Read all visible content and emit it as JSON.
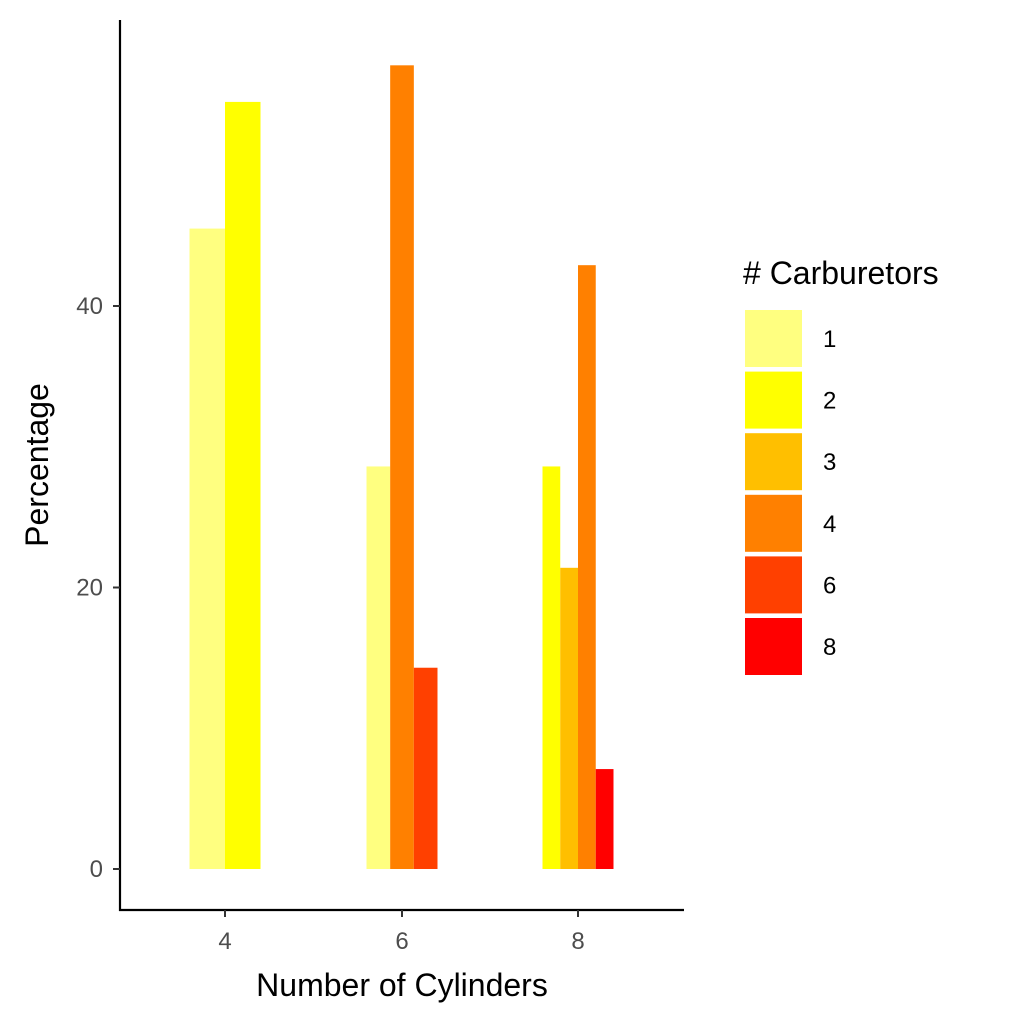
{
  "chart_data": {
    "type": "bar",
    "xlabel": "Number of Cylinders",
    "ylabel": "Percentage",
    "categories": [
      "4",
      "6",
      "8"
    ],
    "ylim": [
      0,
      57.1
    ],
    "yticks": [
      0,
      20,
      40
    ],
    "grid": false,
    "legend": {
      "title": "# Carburetors",
      "position": "right",
      "items": [
        {
          "label": "1",
          "color": "#FFFF80"
        },
        {
          "label": "2",
          "color": "#FFFF00"
        },
        {
          "label": "3",
          "color": "#FFBF00"
        },
        {
          "label": "4",
          "color": "#FF8000"
        },
        {
          "label": "6",
          "color": "#FF4000"
        },
        {
          "label": "8",
          "color": "#FF0000"
        }
      ]
    },
    "groups": [
      {
        "category": "4",
        "bars": [
          {
            "carb": "1",
            "value": 45.5
          },
          {
            "carb": "2",
            "value": 54.5
          }
        ]
      },
      {
        "category": "6",
        "bars": [
          {
            "carb": "1",
            "value": 28.6
          },
          {
            "carb": "4",
            "value": 57.1
          },
          {
            "carb": "6",
            "value": 14.3
          }
        ]
      },
      {
        "category": "8",
        "bars": [
          {
            "carb": "2",
            "value": 28.6
          },
          {
            "carb": "3",
            "value": 21.4
          },
          {
            "carb": "4",
            "value": 42.9
          },
          {
            "carb": "8",
            "value": 7.1
          }
        ]
      }
    ]
  }
}
